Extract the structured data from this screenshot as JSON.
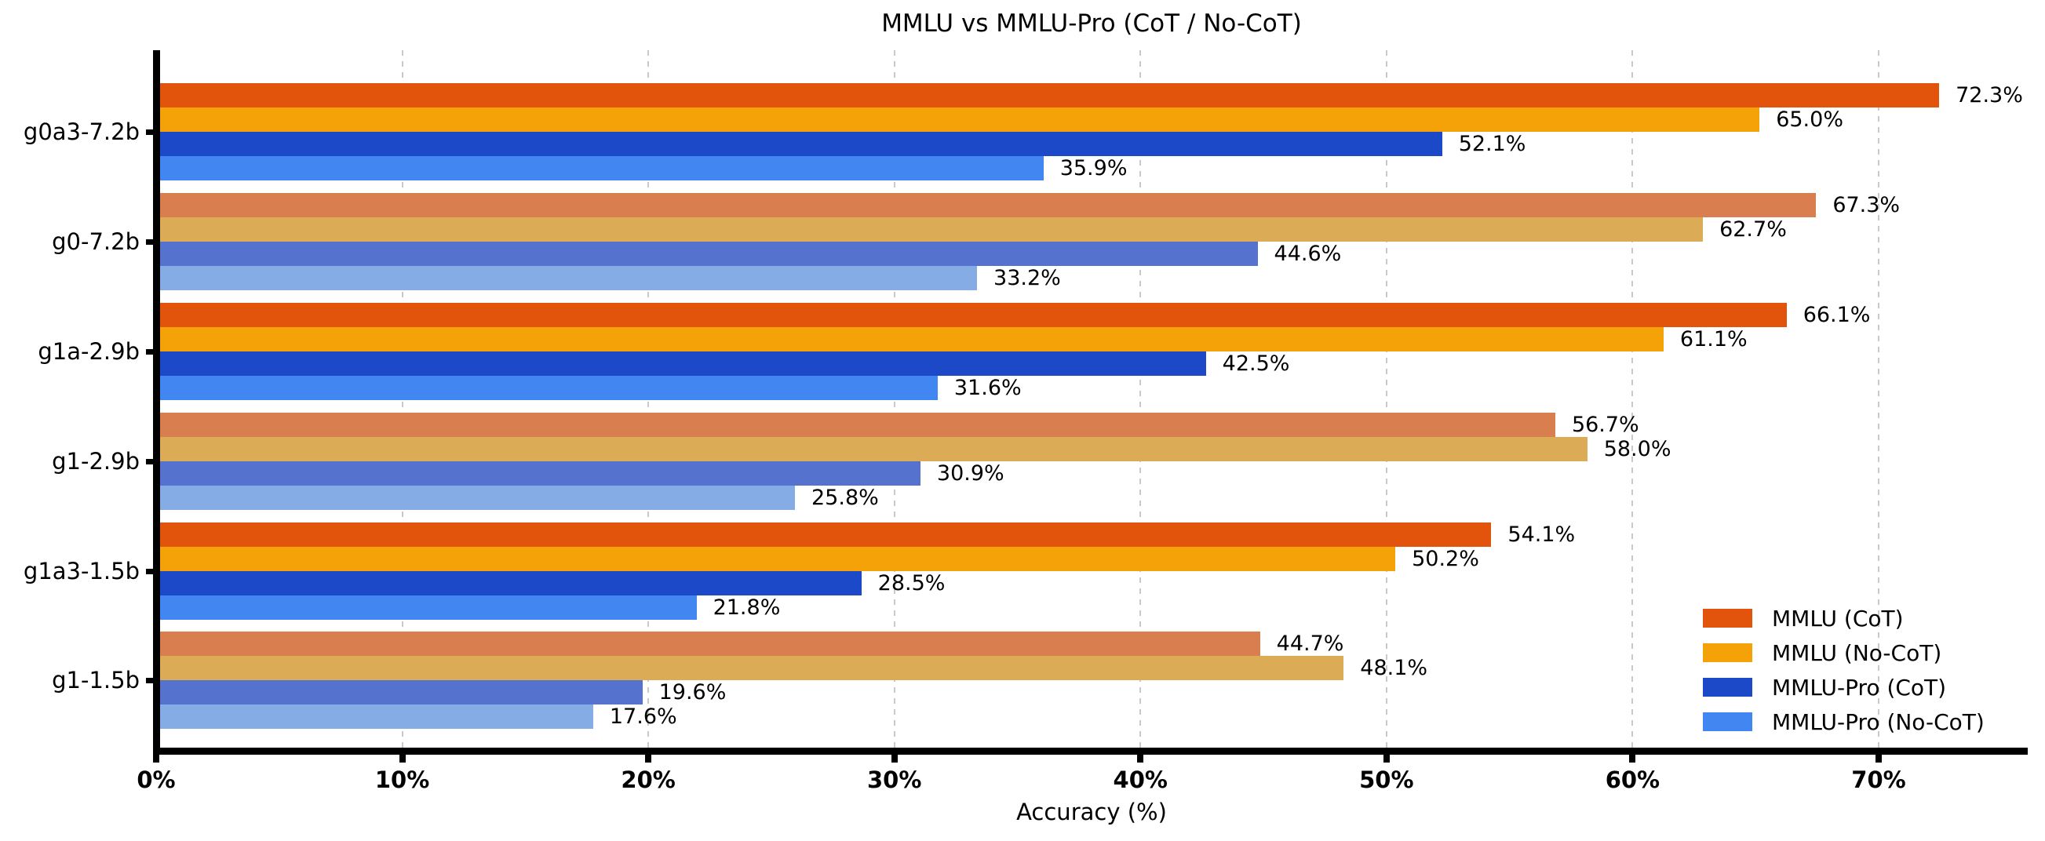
{
  "title": "MMLU vs MMLU-Pro (CoT / No-CoT)",
  "chart_data": {
    "type": "bar",
    "orientation": "horizontal",
    "title": "MMLU vs MMLU-Pro (CoT / No-CoT)",
    "xlabel": "Accuracy (%)",
    "xlim": [
      0,
      76
    ],
    "grid": "vertical dashed lines at each 10% tick",
    "legend_position": "lower right",
    "x_ticks": [
      {
        "value": 0,
        "label": "0%"
      },
      {
        "value": 10,
        "label": "10%"
      },
      {
        "value": 20,
        "label": "20%"
      },
      {
        "value": 30,
        "label": "30%"
      },
      {
        "value": 40,
        "label": "40%"
      },
      {
        "value": 50,
        "label": "50%"
      },
      {
        "value": 60,
        "label": "60%"
      },
      {
        "value": 70,
        "label": "70%"
      }
    ],
    "categories": [
      "g0a3-7.2b",
      "g0-7.2b",
      "g1a-2.9b",
      "g1-2.9b",
      "g1a3-1.5b",
      "g1-1.5b"
    ],
    "muted_row_indices": [
      1,
      3,
      5
    ],
    "series": [
      {
        "name": "MMLU (CoT)",
        "color": "#E2530C",
        "muted_color": "#D97E4F",
        "values": [
          72.3,
          67.3,
          66.1,
          56.7,
          54.1,
          44.7
        ]
      },
      {
        "name": "MMLU (No-CoT)",
        "color": "#F5A208",
        "muted_color": "#DCAB55",
        "values": [
          65.0,
          62.7,
          61.1,
          58.0,
          50.2,
          48.1
        ]
      },
      {
        "name": "MMLU-Pro (CoT)",
        "color": "#1B49C8",
        "muted_color": "#5472CE",
        "values": [
          52.1,
          44.6,
          42.5,
          30.9,
          28.5,
          19.6
        ]
      },
      {
        "name": "MMLU-Pro (No-CoT)",
        "color": "#4287F1",
        "muted_color": "#85ACE5",
        "values": [
          35.9,
          33.2,
          31.6,
          25.8,
          21.8,
          17.6
        ]
      }
    ],
    "value_label_format": "{value}%",
    "colors": {
      "grid": "#C9C9C9",
      "axis": "#000000",
      "text": "#000000",
      "background": "#FFFFFF"
    }
  }
}
